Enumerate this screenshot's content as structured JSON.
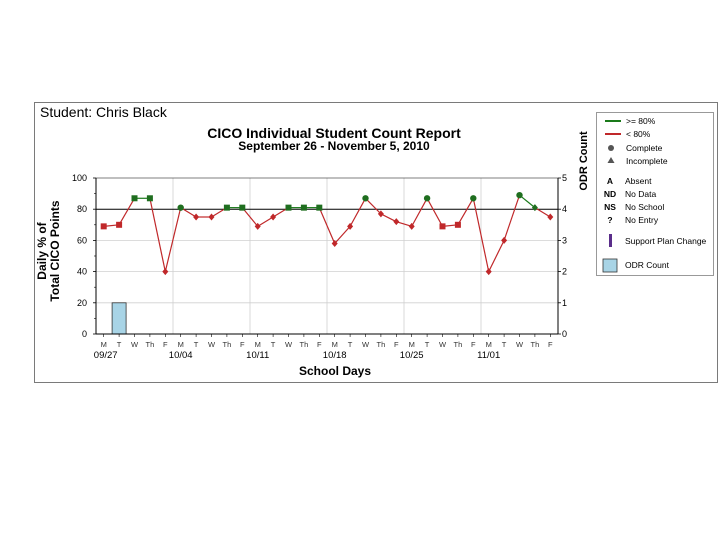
{
  "student": "Student: Chris Black",
  "chart_data": {
    "type": "line",
    "title": "CICO Individual Student Count Report",
    "subtitle": "September 26 - November 5, 2010",
    "ylabel": "Daily % of\nTotal CICO Points",
    "ylabel_lines": [
      "Daily % of",
      "Total CICO Points"
    ],
    "y2label": "ODR Count",
    "xlabel": "School Days",
    "ylim": [
      0,
      100
    ],
    "yticks": [
      0,
      20,
      40,
      60,
      80,
      100
    ],
    "y2lim": [
      0,
      5
    ],
    "y2ticks": [
      0,
      1,
      2,
      3,
      4,
      5
    ],
    "threshold": 80,
    "day_labels": [
      "M",
      "T",
      "W",
      "Th",
      "F",
      "M",
      "T",
      "W",
      "Th",
      "F",
      "M",
      "T",
      "W",
      "Th",
      "F",
      "M",
      "T",
      "W",
      "Th",
      "F",
      "M",
      "T",
      "W",
      "Th",
      "F",
      "M",
      "T",
      "W",
      "Th",
      "F"
    ],
    "week_labels": [
      {
        "day_index": 0,
        "label": "09/27"
      },
      {
        "day_index": 5,
        "label": "10/04"
      },
      {
        "day_index": 10,
        "label": "10/11"
      },
      {
        "day_index": 15,
        "label": "10/18"
      },
      {
        "day_index": 20,
        "label": "10/25"
      },
      {
        "day_index": 25,
        "label": "11/01"
      }
    ],
    "values": [
      69,
      70,
      87,
      87,
      40,
      81,
      75,
      75,
      81,
      81,
      69,
      75,
      81,
      81,
      81,
      58,
      69,
      87,
      77,
      72,
      69,
      87,
      69,
      70,
      87,
      40,
      60,
      89,
      81,
      75
    ],
    "markers": [
      "square",
      "square",
      "square",
      "square",
      "diamond",
      "circle",
      "diamond",
      "diamond",
      "square",
      "square",
      "diamond",
      "diamond",
      "square",
      "square",
      "square",
      "diamond",
      "diamond",
      "circle",
      "diamond",
      "diamond",
      "diamond",
      "circle",
      "square",
      "square",
      "circle",
      "diamond",
      "diamond",
      "circle",
      "diamond",
      "diamond"
    ],
    "odr": [
      {
        "day_index": 1,
        "value": 1
      }
    ],
    "colors": {
      "above": "#1a7a1a",
      "below": "#c0282a",
      "marker_above": "#1f6e1f",
      "marker_below": "#c0282a",
      "odr_fill": "#a8d4e6",
      "grid": "#d0d0d0"
    }
  },
  "legend": {
    "above": ">= 80%",
    "below": "< 80%",
    "complete": "Complete",
    "incomplete": "Incomplete",
    "codes": [
      {
        "key": "A",
        "label": "Absent"
      },
      {
        "key": "ND",
        "label": "No Data"
      },
      {
        "key": "NS",
        "label": "No School"
      },
      {
        "key": "?",
        "label": "No Entry"
      }
    ],
    "support": "Support Plan Change",
    "odr": "ODR Count"
  }
}
